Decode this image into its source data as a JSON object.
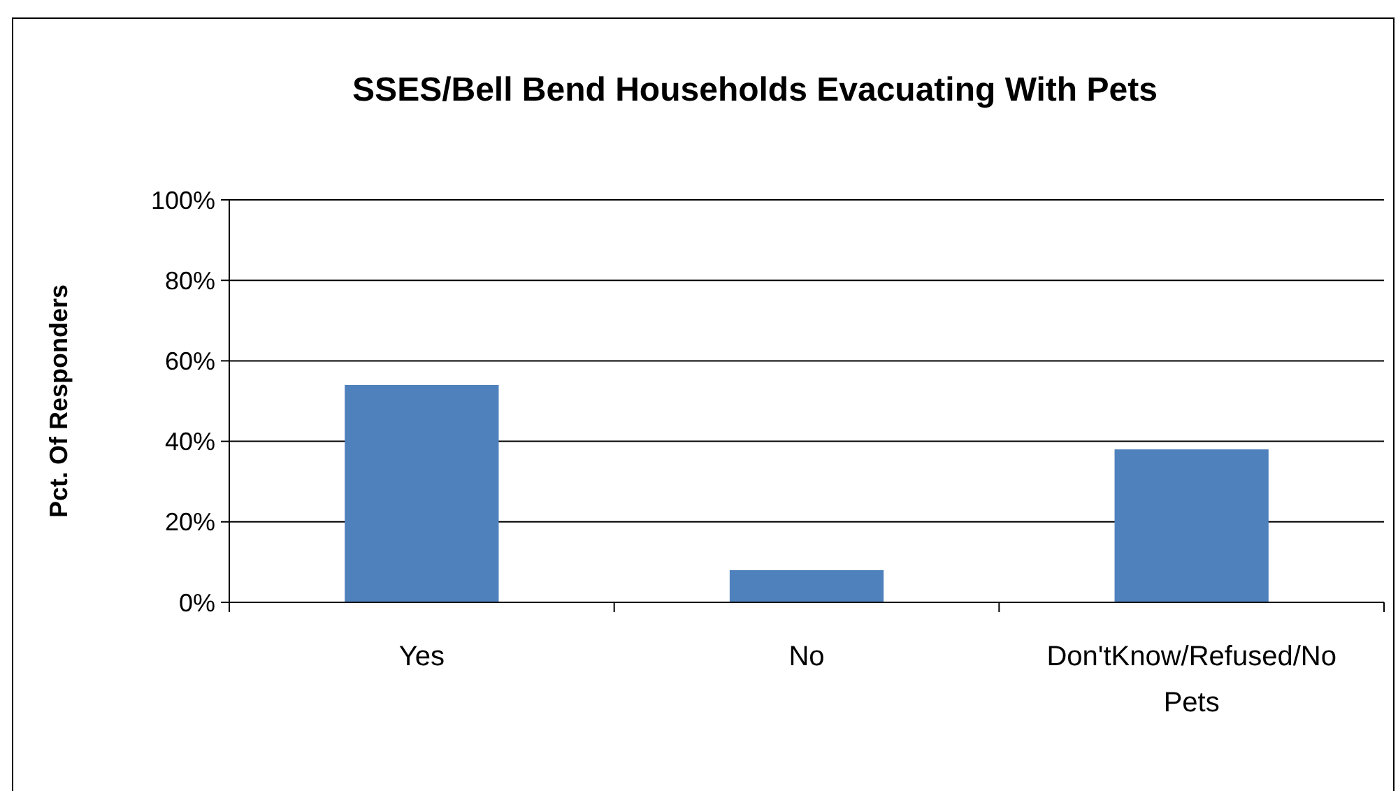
{
  "chart_data": {
    "type": "bar",
    "title": "SSES/Bell Bend Households Evacuating With Pets",
    "ylabel": "Pct. Of Responders",
    "categories": [
      "Yes",
      "No",
      "Don'tKnow/Refused/No Pets"
    ],
    "values": [
      54,
      8,
      38
    ],
    "color": "#4f81bd",
    "ylim": [
      0,
      100
    ],
    "yticks": [
      {
        "value": 0,
        "label": "0%"
      },
      {
        "value": 20,
        "label": "20%"
      },
      {
        "value": 40,
        "label": "40%"
      },
      {
        "value": 60,
        "label": "60%"
      },
      {
        "value": 80,
        "label": "80%"
      },
      {
        "value": 100,
        "label": "100%"
      }
    ],
    "grid": "y"
  }
}
